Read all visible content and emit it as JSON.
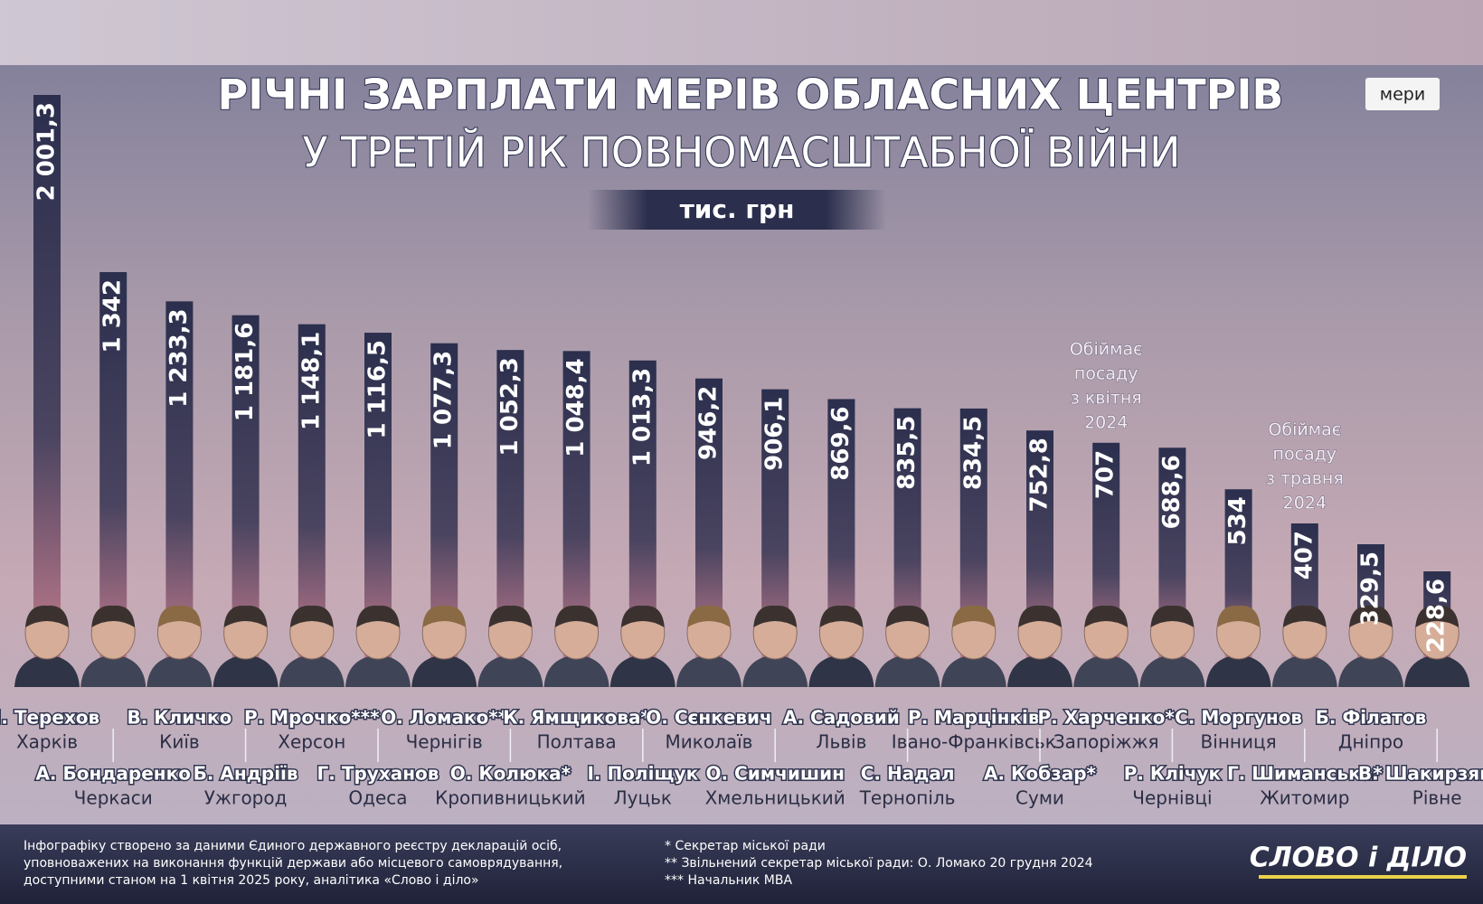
{
  "chart_data": {
    "type": "bar",
    "title": "РІЧНІ ЗАРПЛАТИ МЕРІВ ОБЛАСНИХ ЦЕНТРІВ",
    "subtitle": "У ТРЕТІЙ РІК ПОВНОМАСШТАБНОЇ ВІЙНИ",
    "unit_label": "тис. грн",
    "categories": [
      "І. Терехов",
      "А. Бондаренко",
      "В. Кличко",
      "Б. Андріїв",
      "Р. Мрочко***",
      "Г. Труханов",
      "О. Ломако**",
      "О. Колюка*",
      "К. Ямщикова*",
      "І. Поліщук",
      "О. Сєнкевич",
      "О. Симчишин",
      "А. Садовий",
      "С. Надал",
      "Р. Марцінків",
      "А. Кобзар*",
      "Р. Харченко*",
      "Р. Клічук",
      "С. Моргунов",
      "Г. Шиманська*",
      "Б. Філатов",
      "В. Шакирзянов"
    ],
    "cities": [
      "Харків",
      "Черкаси",
      "Київ",
      "Ужгород",
      "Херсон",
      "Одеса",
      "Чернігів",
      "Кропивницький",
      "Полтава",
      "Луцьк",
      "Миколаїв",
      "Хмельницький",
      "Львів",
      "Тернопіль",
      "Івано-Франківськ",
      "Суми",
      "Запоріжжя",
      "Чернівці",
      "Вінниця",
      "Житомир",
      "Дніпро",
      "Рівне"
    ],
    "values": [
      2001.3,
      1342,
      1233.3,
      1181.6,
      1148.1,
      1116.5,
      1077.3,
      1052.3,
      1048.4,
      1013.3,
      946.2,
      906.1,
      869.6,
      835.5,
      834.5,
      752.8,
      707,
      688.6,
      534,
      407,
      329.5,
      228.6
    ],
    "value_labels": [
      "2 001,3",
      "1 342",
      "1 233,3",
      "1 181,6",
      "1 148,1",
      "1 116,5",
      "1 077,3",
      "1 052,3",
      "1 048,4",
      "1 013,3",
      "946,2",
      "906,1",
      "869,6",
      "835,5",
      "834,5",
      "752,8",
      "707",
      "688,6",
      "534",
      "407",
      "329,5",
      "228,6"
    ],
    "color": "#2b2f4d",
    "annotations": [
      {
        "category": "Р. Харченко*",
        "lines": [
          "Обіймає",
          "посаду",
          "з квітня",
          "2024"
        ]
      },
      {
        "category": "Г. Шиманська*",
        "lines": [
          "Обіймає",
          "посаду",
          "з травня",
          "2024"
        ]
      }
    ]
  },
  "source_lines": [
    "Інфографіку створено за даними Єдиного державного реєстру декларацій осіб,",
    "уповноважених на виконання функцій держави або місцевого самоврядування,",
    "доступними станом на 1 квітня 2025 року, аналітика «Слово і діло»"
  ],
  "footnotes": [
    "* Секретар міської ради",
    "** Звільнений секретар міської ради: О. Ломако 20 грудня 2024",
    "*** Начальник МВА"
  ],
  "logo": "СЛОВО і ДІЛО",
  "button": "мери"
}
